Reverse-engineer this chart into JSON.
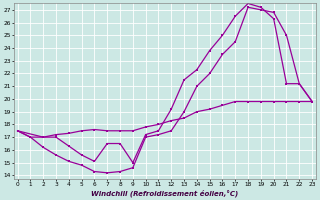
{
  "xlabel": "Windchill (Refroidissement éolien,°C)",
  "bg_color": "#cce8e4",
  "line_color": "#990099",
  "grid_color": "#ffffff",
  "xlim": [
    0,
    23
  ],
  "ylim": [
    14,
    27
  ],
  "xticks": [
    0,
    1,
    2,
    3,
    4,
    5,
    6,
    7,
    8,
    9,
    10,
    11,
    12,
    13,
    14,
    15,
    16,
    17,
    18,
    19,
    20,
    21,
    22,
    23
  ],
  "yticks": [
    14,
    15,
    16,
    17,
    18,
    19,
    20,
    21,
    22,
    23,
    24,
    25,
    26,
    27
  ],
  "line1_x": [
    0,
    1,
    2,
    3,
    4,
    5,
    6,
    7,
    8,
    9,
    10,
    11,
    12,
    13,
    14,
    15,
    16,
    17,
    18,
    19,
    20,
    21,
    22,
    23
  ],
  "line1_y": [
    17.5,
    17.0,
    16.2,
    15.6,
    15.1,
    14.8,
    14.3,
    14.2,
    14.3,
    14.6,
    17.0,
    17.2,
    17.5,
    19.0,
    21.0,
    22.0,
    23.5,
    24.5,
    27.2,
    27.0,
    26.8,
    25.0,
    21.2,
    19.8
  ],
  "line2_x": [
    0,
    2,
    3,
    4,
    5,
    6,
    7,
    8,
    9,
    10,
    11,
    12,
    13,
    14,
    15,
    16,
    17,
    18,
    19,
    20,
    21,
    22,
    23
  ],
  "line2_y": [
    17.5,
    17.0,
    17.0,
    16.3,
    15.6,
    15.1,
    16.5,
    16.5,
    15.0,
    17.2,
    17.5,
    19.2,
    21.5,
    22.3,
    23.8,
    25.0,
    26.5,
    27.5,
    27.2,
    26.3,
    21.2,
    21.2,
    19.8
  ],
  "line3_x": [
    0,
    1,
    2,
    3,
    4,
    5,
    6,
    7,
    8,
    9,
    10,
    11,
    12,
    13,
    14,
    15,
    16,
    17,
    18,
    19,
    20,
    21,
    22,
    23
  ],
  "line3_y": [
    17.5,
    17.0,
    17.0,
    17.2,
    17.3,
    17.5,
    17.6,
    17.5,
    17.5,
    17.5,
    17.8,
    18.0,
    18.3,
    18.5,
    19.0,
    19.2,
    19.5,
    19.8,
    19.8,
    19.8,
    19.8,
    19.8,
    19.8,
    19.8
  ]
}
